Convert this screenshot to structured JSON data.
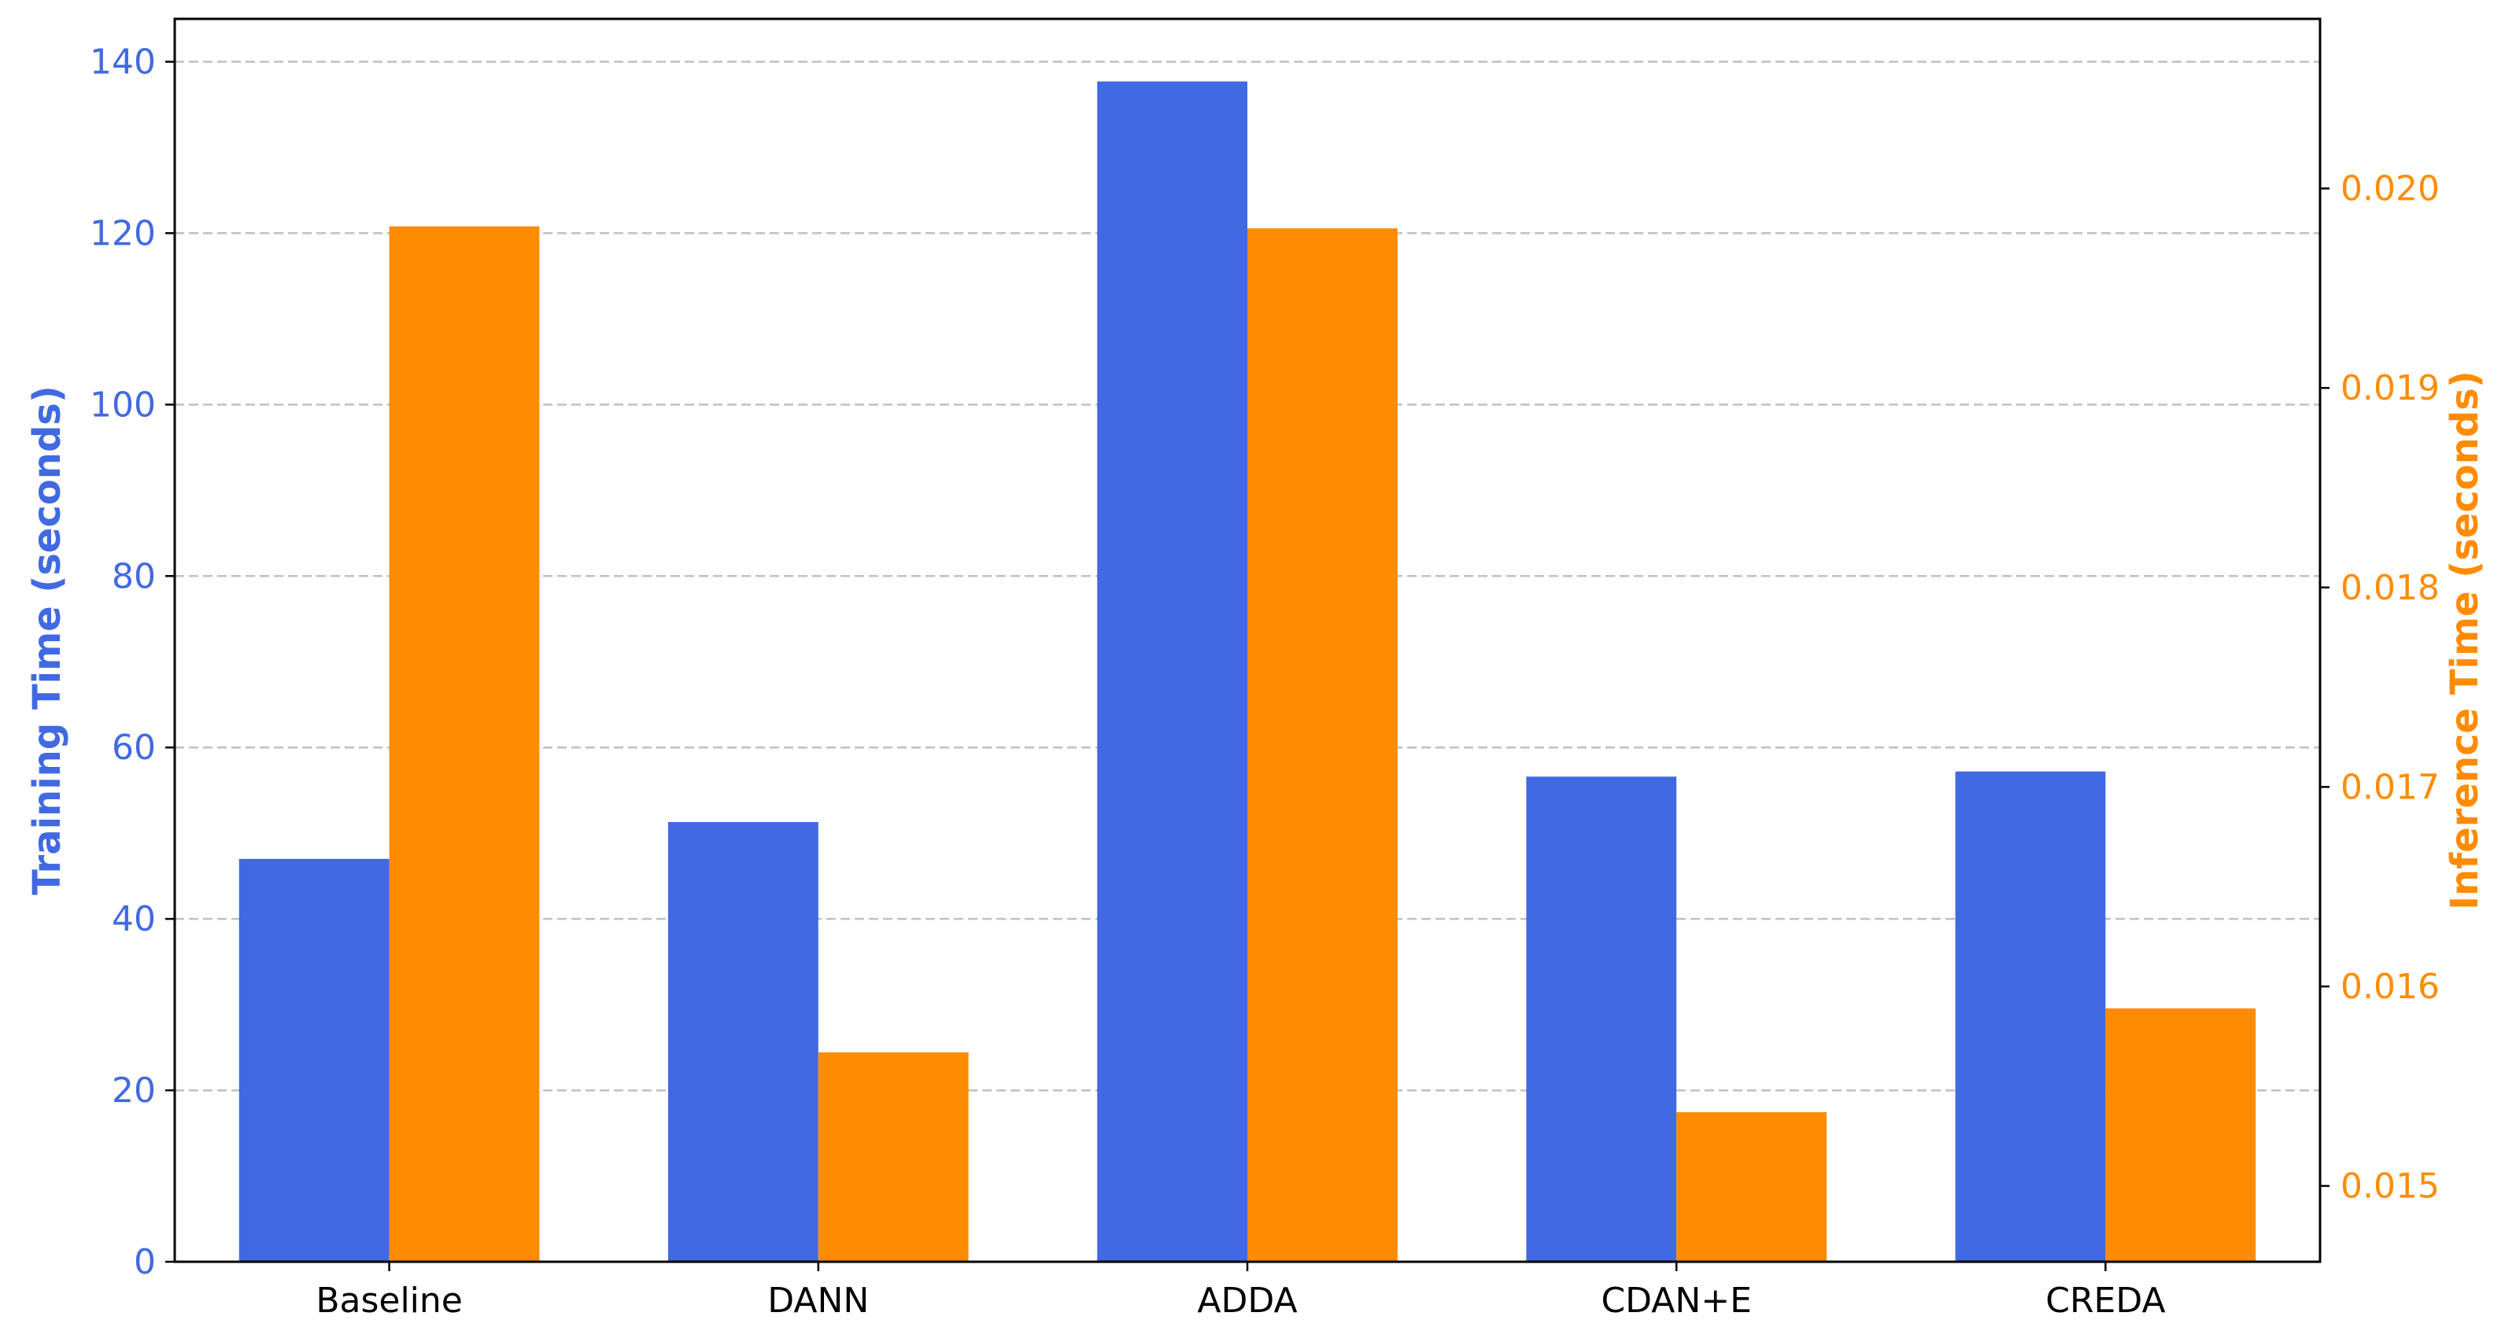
{
  "chart_data": {
    "type": "bar",
    "categories": [
      "Baseline",
      "DANN",
      "ADDA",
      "CDAN+E",
      "CREDA"
    ],
    "series": [
      {
        "axis": "left",
        "color": "#4169E1",
        "values": [
          47.0,
          51.3,
          137.7,
          56.6,
          57.2
        ]
      },
      {
        "axis": "right",
        "color": "#FF8C00",
        "values": [
          0.01981,
          0.01567,
          0.0198,
          0.01537,
          0.01589
        ]
      }
    ],
    "left_axis": {
      "label": "Training Time (seconds)",
      "color": "#4169E1",
      "range": [
        0,
        145
      ],
      "ticks": [
        0,
        20,
        40,
        60,
        80,
        100,
        120,
        140
      ],
      "tick_labels": [
        "0",
        "20",
        "40",
        "60",
        "80",
        "100",
        "120",
        "140"
      ]
    },
    "right_axis": {
      "label": "Inference Time (seconds)",
      "color": "#FF8C00",
      "range": [
        0.01462,
        0.02085
      ],
      "ticks": [
        0.015,
        0.016,
        0.017,
        0.018,
        0.019,
        0.02
      ],
      "tick_labels": [
        "0.015",
        "0.016",
        "0.017",
        "0.018",
        "0.019",
        "0.020"
      ]
    },
    "grid": "horizontal-dashed",
    "legend": "none"
  }
}
